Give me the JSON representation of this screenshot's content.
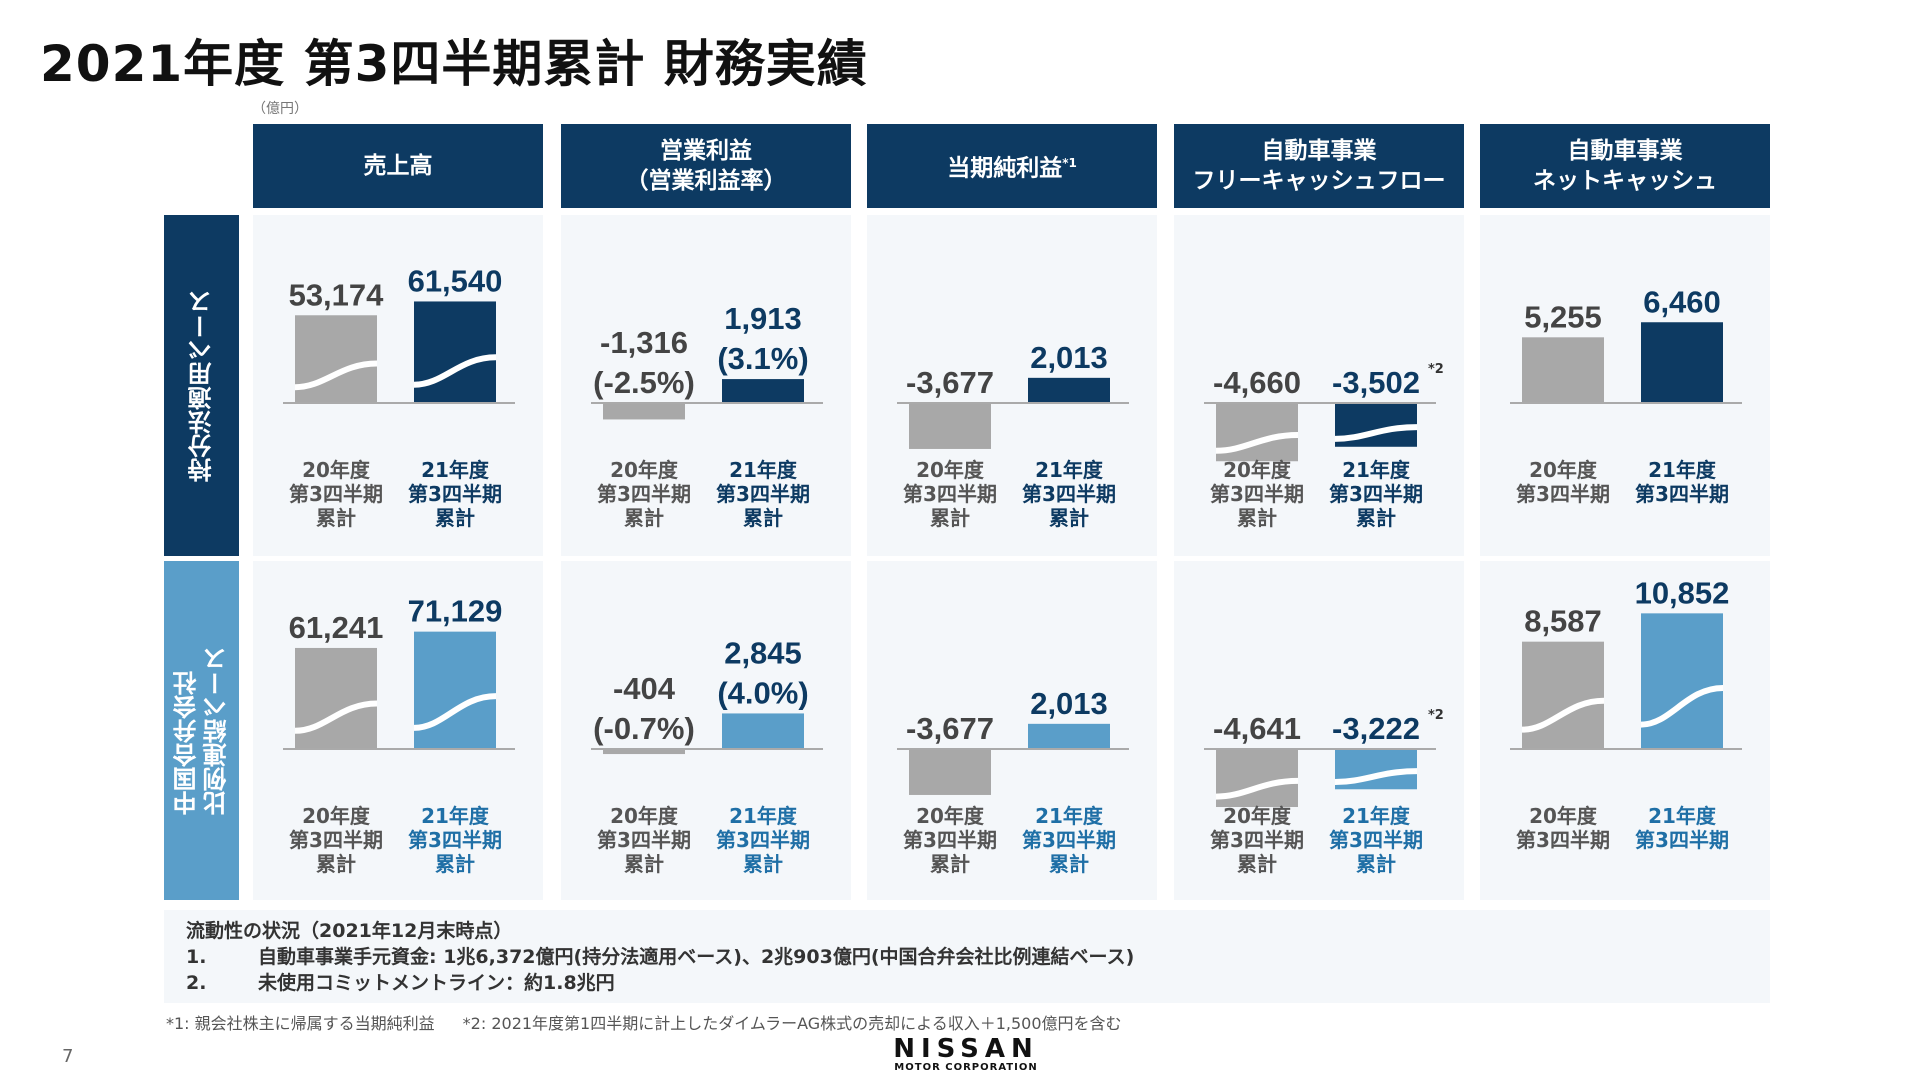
{
  "title": "2021年度 第3四半期累計 財務実績",
  "unit": "（億円）",
  "colors": {
    "navy": "#0d3a62",
    "blue": "#5a9ec9",
    "gray": "#a8a8a8",
    "panel_bg": "#f4f7fa"
  },
  "headers": [
    {
      "line1": "売上高",
      "line2": "",
      "note": ""
    },
    {
      "line1": "営業利益",
      "line2": "（営業利益率）",
      "note": ""
    },
    {
      "line1": "当期純利益",
      "line2": "",
      "note": "*1"
    },
    {
      "line1": "自動車事業",
      "line2": "フリーキャッシュフロー",
      "note": ""
    },
    {
      "line1": "自動車事業",
      "line2": "ネットキャッシュ",
      "note": ""
    }
  ],
  "rows": [
    {
      "label": "持分法適用ベース",
      "label_lines": [
        "持分法適用ベース"
      ],
      "accent": "#0d3a62",
      "panels": [
        {
          "values": [
            53174,
            61540
          ],
          "labels": [
            "53,174",
            "61,540"
          ],
          "sub": [
            "",
            ""
          ],
          "note": "",
          "wave": true
        },
        {
          "values": [
            -1316,
            1913
          ],
          "labels": [
            "-1,316",
            "1,913"
          ],
          "sub": [
            "(-2.5%)",
            "(3.1%)"
          ],
          "note": "",
          "wave": false
        },
        {
          "values": [
            -3677,
            2013
          ],
          "labels": [
            "-3,677",
            "2,013"
          ],
          "sub": [
            "",
            ""
          ],
          "note": "",
          "wave": false
        },
        {
          "values": [
            -4660,
            -3502
          ],
          "labels": [
            "-4,660",
            "-3,502"
          ],
          "sub": [
            "",
            ""
          ],
          "note": "*2",
          "wave": true
        },
        {
          "values": [
            5255,
            6460
          ],
          "labels": [
            "5,255",
            "6,460"
          ],
          "sub": [
            "",
            ""
          ],
          "note": "",
          "wave": false
        }
      ]
    },
    {
      "label": "中国合弁会社比例連結ベース",
      "label_lines": [
        "中国合弁会社",
        "比例連結ベース"
      ],
      "accent": "#5a9ec9",
      "panels": [
        {
          "values": [
            61241,
            71129
          ],
          "labels": [
            "61,241",
            "71,129"
          ],
          "sub": [
            "",
            ""
          ],
          "note": "",
          "wave": true
        },
        {
          "values": [
            -404,
            2845
          ],
          "labels": [
            "-404",
            "2,845"
          ],
          "sub": [
            "(-0.7%)",
            "(4.0%)"
          ],
          "note": "",
          "wave": false
        },
        {
          "values": [
            -3677,
            2013
          ],
          "labels": [
            "-3,677",
            "2,013"
          ],
          "sub": [
            "",
            ""
          ],
          "note": "",
          "wave": false
        },
        {
          "values": [
            -4641,
            -3222
          ],
          "labels": [
            "-4,641",
            "-3,222"
          ],
          "sub": [
            "",
            ""
          ],
          "note": "*2",
          "wave": true
        },
        {
          "values": [
            8587,
            10852
          ],
          "labels": [
            "8,587",
            "10,852"
          ],
          "sub": [
            "",
            ""
          ],
          "note": "",
          "wave": true
        }
      ]
    }
  ],
  "categories_cumulative": [
    [
      "20年度",
      "第3四半期",
      "累計"
    ],
    [
      "21年度",
      "第3四半期",
      "累計"
    ]
  ],
  "categories_point": [
    [
      "20年度",
      "第3四半期"
    ],
    [
      "21年度",
      "第3四半期"
    ]
  ],
  "liquidity": {
    "heading": "流動性の状況（2021年12月末時点）",
    "items": [
      {
        "num": "1.",
        "text": "自動車事業手元資金: 1兆6,372億円(持分法適用ベース)、2兆903億円(中国合弁会社比例連結ベース)"
      },
      {
        "num": "2.",
        "text": "未使用コミットメントライン：約1.8兆円"
      }
    ]
  },
  "footnotes": [
    "*1: 親会社株主に帰属する当期純利益",
    "*2: 2021年度第1四半期に計上したダイムラーAG株式の売却による収入＋1,500億円を含む"
  ],
  "page_number": "7",
  "logo": {
    "name": "NISSAN",
    "sub": "MOTOR CORPORATION"
  }
}
